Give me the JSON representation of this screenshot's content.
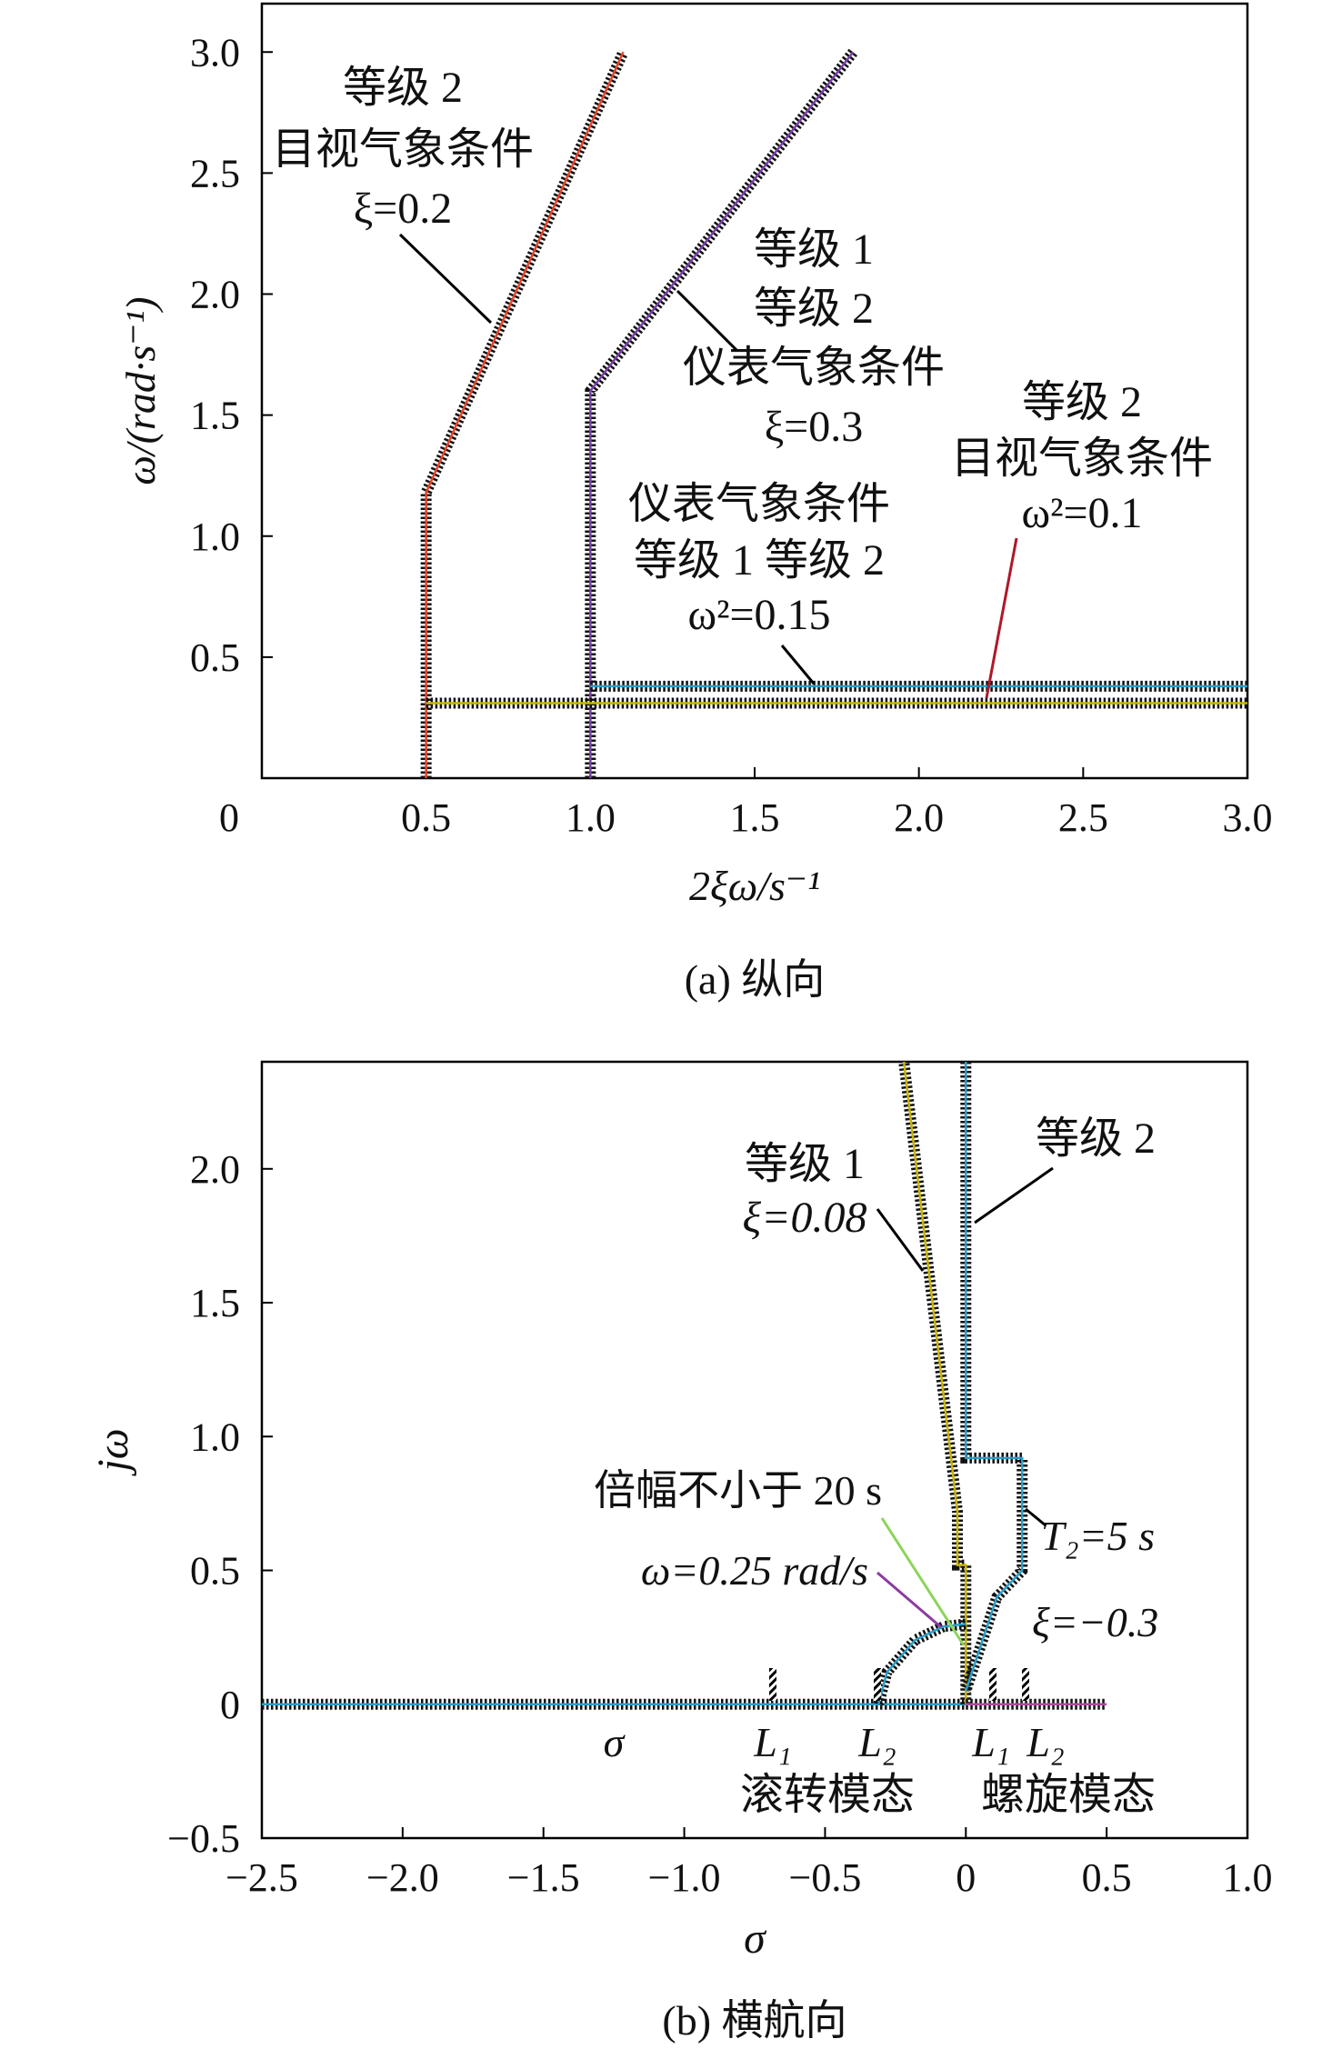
{
  "chart_data": [
    {
      "type": "line",
      "caption": "(a) 纵向",
      "xlabel": "2ξω/s⁻¹",
      "ylabel": "ω/(rad·s⁻¹)",
      "xlim": [
        0,
        3.0
      ],
      "ylim": [
        0,
        3.2
      ],
      "xticks": [
        "0",
        "0.5",
        "1.0",
        "1.5",
        "2.0",
        "2.5",
        "3.0"
      ],
      "yticks": [
        "0.5",
        "1.0",
        "1.5",
        "2.0",
        "2.5",
        "3.0"
      ],
      "series": [
        {
          "color": "#e8452c",
          "points": [
            [
              0.5,
              0
            ],
            [
              0.5,
              1.18
            ],
            [
              1.1,
              3.0
            ]
          ]
        },
        {
          "color": "#7a3fa8",
          "points": [
            [
              1.0,
              0
            ],
            [
              1.0,
              1.6
            ],
            [
              1.8,
              3.0
            ]
          ]
        },
        {
          "color": "#c9b400",
          "points": [
            [
              0.5,
              0.31
            ],
            [
              3.0,
              0.31
            ]
          ]
        },
        {
          "color": "#2aa0c8",
          "points": [
            [
              1.0,
              0.38
            ],
            [
              3.0,
              0.38
            ]
          ]
        }
      ],
      "annotations": [
        {
          "lines": [
            "等级 2",
            "目视气象条件",
            "ξ=0.2"
          ]
        },
        {
          "lines": [
            "等级 1",
            "等级 2",
            "仪表气象条件",
            "ξ=0.3"
          ]
        },
        {
          "lines": [
            "等级 2",
            "目视气象条件",
            "ω²=0.1"
          ]
        },
        {
          "lines": [
            "仪表气象条件",
            "等级 1 等级 2",
            "ω²=0.15"
          ]
        }
      ]
    },
    {
      "type": "line",
      "caption": "(b) 横航向",
      "xlabel": "σ",
      "ylabel": "jω",
      "xlim": [
        -2.5,
        1.0
      ],
      "ylim": [
        -0.5,
        2.4
      ],
      "xticks": [
        "−2.5",
        "−2.0",
        "−1.5",
        "−1.0",
        "−0.5",
        "0",
        "0.5",
        "1.0"
      ],
      "yticks": [
        "−0.5",
        "0",
        "0.5",
        "1.0",
        "1.5",
        "2.0"
      ],
      "series": [
        {
          "color": "#2aa0c8",
          "points": [
            [
              -2.5,
              0
            ],
            [
              0,
              0
            ]
          ]
        },
        {
          "color": "#c9b400",
          "points": [
            [
              0,
              0
            ],
            [
              0,
              0.52
            ],
            [
              -0.03,
              0.52
            ],
            [
              -0.03,
              0.72
            ],
            [
              -0.22,
              2.4
            ]
          ]
        },
        {
          "color": "#2aa0c8",
          "points": [
            [
              0,
              2.4
            ],
            [
              0,
              0.92
            ],
            [
              0.2,
              0.92
            ],
            [
              0.2,
              0.5
            ],
            [
              0.11,
              0.4
            ],
            [
              0,
              0.05
            ]
          ]
        },
        {
          "color": "#b04aa0",
          "points": [
            [
              0,
              0
            ],
            [
              0.5,
              0
            ]
          ]
        },
        {
          "color": "#2aa0c8",
          "points": [
            [
              -0.31,
              0
            ],
            [
              -0.28,
              0.12
            ],
            [
              -0.18,
              0.24
            ],
            [
              -0.08,
              0.29
            ],
            [
              0,
              0.3
            ]
          ]
        }
      ],
      "annotations": [
        {
          "lines": [
            "等级 1",
            "ξ=0.08"
          ]
        },
        {
          "lines": [
            "等级 2"
          ]
        },
        {
          "lines": [
            "倍幅不小于 20 s"
          ]
        },
        {
          "lines": [
            "ω=0.25 rad/s"
          ]
        },
        {
          "lines": [
            "T₂=5 s"
          ]
        },
        {
          "lines": [
            "ξ=−0.3"
          ]
        },
        {
          "lines": [
            "σ"
          ]
        },
        {
          "lines": [
            "L₁"
          ]
        },
        {
          "lines": [
            "L₂"
          ]
        },
        {
          "lines": [
            "L₁"
          ]
        },
        {
          "lines": [
            "L₂"
          ]
        },
        {
          "lines": [
            "滚转模态"
          ]
        },
        {
          "lines": [
            "螺旋模态"
          ]
        }
      ]
    }
  ]
}
